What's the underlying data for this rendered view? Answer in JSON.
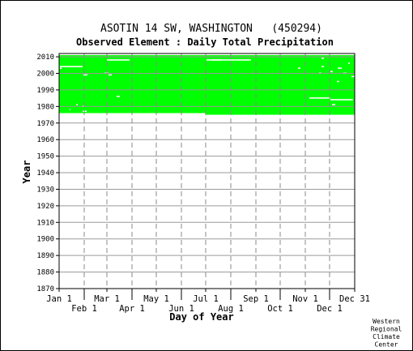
{
  "chart_data": {
    "type": "heatmap",
    "title": "ASOTIN 14 SW, WASHINGTON   (450294)",
    "subtitle": "Observed Element : Daily Total Precipitation",
    "xlabel": "Day of Year",
    "ylabel": "Year",
    "xlim": [
      1,
      366
    ],
    "ylim": [
      1870,
      2012
    ],
    "ytick_labels": [
      "1870",
      "1880",
      "1890",
      "1900",
      "1910",
      "1920",
      "1930",
      "1940",
      "1950",
      "1960",
      "1970",
      "1980",
      "1990",
      "2000",
      "2010"
    ],
    "month_labels_upper": [
      "Jan 1",
      "Mar 1",
      "May 1",
      "Jul 1",
      "Sep 1",
      "Nov 1",
      "Dec 31"
    ],
    "month_labels_lower": [
      "Feb 1",
      "Apr 1",
      "Jun 1",
      "Aug 1",
      "Oct 1",
      "Dec 1"
    ],
    "month_days_upper": [
      1,
      60,
      121,
      182,
      244,
      305,
      366
    ],
    "month_days_lower": [
      32,
      91,
      152,
      213,
      274,
      335
    ],
    "coverage_color": "#00ff00",
    "background_color": "#ffffff",
    "coverage_blocks": [
      {
        "day_start": 1,
        "day_end": 182,
        "year_start": 1976,
        "year_end": 2011
      },
      {
        "day_start": 182,
        "day_end": 366,
        "year_start": 1975,
        "year_end": 2011
      }
    ],
    "missing_segments": [
      {
        "day_start": 2,
        "day_end": 30,
        "year": 2004
      },
      {
        "day_start": 60,
        "day_end": 88,
        "year": 2008
      },
      {
        "day_start": 57,
        "day_end": 62,
        "year": 2000
      },
      {
        "day_start": 72,
        "day_end": 76,
        "year": 1986
      },
      {
        "day_start": 62,
        "day_end": 66,
        "year": 1999
      },
      {
        "day_start": 183,
        "day_end": 238,
        "year": 2008
      },
      {
        "day_start": 190,
        "day_end": 202,
        "year": 2008
      },
      {
        "day_start": 2,
        "day_end": 4,
        "year": 2003
      },
      {
        "day_start": 22,
        "day_end": 24,
        "year": 1981
      },
      {
        "day_start": 30,
        "day_end": 32,
        "year": 1980
      },
      {
        "day_start": 31,
        "day_end": 36,
        "year": 1999
      },
      {
        "day_start": 14,
        "day_end": 15,
        "year": 1978
      },
      {
        "day_start": 30,
        "day_end": 35,
        "year": 1977
      },
      {
        "day_start": 310,
        "day_end": 336,
        "year": 1985
      },
      {
        "day_start": 336,
        "day_end": 364,
        "year": 1984
      },
      {
        "day_start": 362,
        "day_end": 366,
        "year": 1998
      },
      {
        "day_start": 344,
        "day_end": 347,
        "year": 1995
      },
      {
        "day_start": 336,
        "day_end": 339,
        "year": 2001
      },
      {
        "day_start": 352,
        "day_end": 356,
        "year": 2000
      },
      {
        "day_start": 345,
        "day_end": 350,
        "year": 2003
      },
      {
        "day_start": 296,
        "day_end": 299,
        "year": 2003
      },
      {
        "day_start": 322,
        "day_end": 325,
        "year": 2000
      },
      {
        "day_start": 325,
        "day_end": 328,
        "year": 2004
      },
      {
        "day_start": 358,
        "day_end": 360,
        "year": 2006
      },
      {
        "day_start": 338,
        "day_end": 342,
        "year": 1981
      },
      {
        "day_start": 325,
        "day_end": 328,
        "year": 2009
      }
    ],
    "grid": true
  },
  "credit": [
    "Western",
    "Regional",
    "Climate",
    "Center"
  ]
}
